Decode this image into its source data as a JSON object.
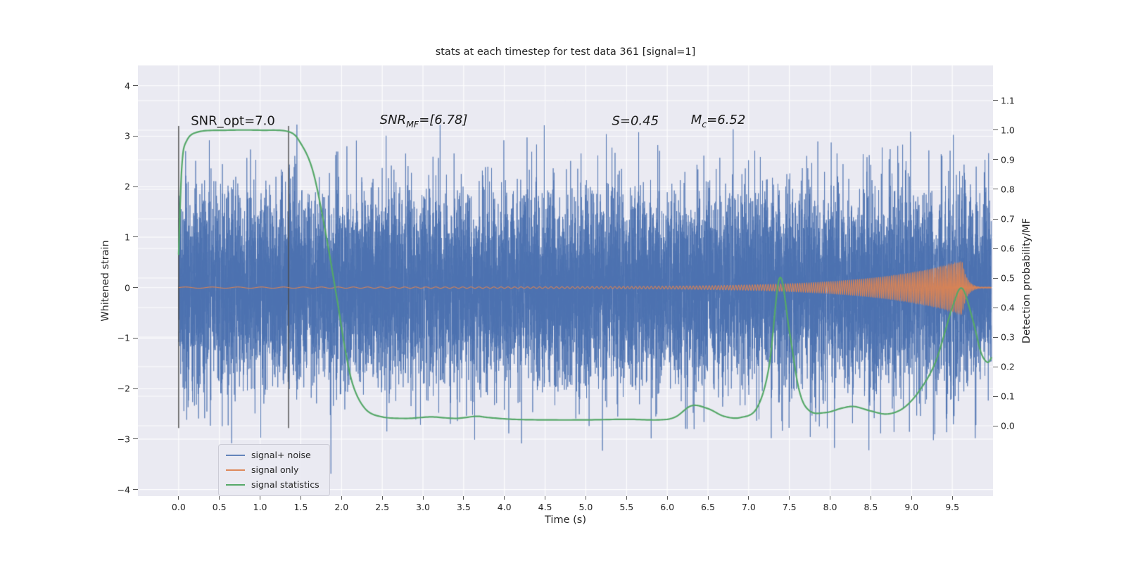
{
  "chart_data": {
    "type": "line",
    "title": "stats at each timestep for test data 361 [signal=1]",
    "background": "#eaeaf2",
    "grid_color": "#ffffff",
    "axes": {
      "x": {
        "label": "Time (s)",
        "lim": [
          -0.5,
          10.0
        ],
        "ticks": [
          0,
          0.5,
          1,
          1.5,
          2,
          2.5,
          3,
          3.5,
          4,
          4.5,
          5,
          5.5,
          6,
          6.5,
          7,
          7.5,
          8,
          8.5,
          9,
          9.5
        ],
        "tick_labels": [
          "0.0",
          "0.5",
          "1.0",
          "1.5",
          "2.0",
          "2.5",
          "3.0",
          "3.5",
          "4.0",
          "4.5",
          "5.0",
          "5.5",
          "6.0",
          "6.5",
          "7.0",
          "7.5",
          "8.0",
          "8.5",
          "9.0",
          "9.5"
        ]
      },
      "left": {
        "label": "Whitened strain",
        "lim": [
          -4.13,
          4.4
        ],
        "ticks": [
          4,
          3,
          2,
          1,
          0,
          -1,
          -2,
          -3,
          -4
        ],
        "tick_labels": [
          "4",
          "3",
          "2",
          "1",
          "0",
          "−1",
          "−2",
          "−3",
          "−4"
        ]
      },
      "right": {
        "label": "Detection probability/MF",
        "lim": [
          -0.238,
          1.219
        ],
        "ticks": [
          1.1,
          1.0,
          0.9,
          0.8,
          0.7,
          0.6,
          0.5,
          0.4,
          0.3,
          0.2,
          0.1,
          0.0
        ],
        "tick_labels": [
          "1.1",
          "1.0",
          "0.9",
          "0.8",
          "0.7",
          "0.6",
          "0.5",
          "0.4",
          "0.3",
          "0.2",
          "0.1",
          "0.0"
        ]
      }
    },
    "vlines": {
      "x": [
        0.0,
        1.35
      ],
      "strain_range": [
        -2.78,
        3.2
      ],
      "color": "#4a4a4a"
    },
    "annotations": [
      {
        "id": "snr-opt",
        "style": "plain",
        "prefix": "SNR_opt=7.0",
        "sub": "",
        "suffix": "",
        "x": 0.15,
        "y": 3.3
      },
      {
        "id": "snr-mf",
        "style": "math",
        "prefix": "SNR",
        "sub": "MF",
        "suffix": "=[6.78]",
        "x": 2.47,
        "y": 3.3
      },
      {
        "id": "s-value",
        "style": "math",
        "prefix": "S",
        "sub": "",
        "suffix": "=0.45",
        "x": 5.32,
        "y": 3.3
      },
      {
        "id": "mc-value",
        "style": "math",
        "prefix": "M",
        "sub": "c",
        "suffix": "=6.52",
        "x": 6.29,
        "y": 3.3
      }
    ],
    "series": [
      {
        "name": "signal+ noise",
        "kind": "noise",
        "axis": "left",
        "color": "#4c72b0",
        "alpha": 0.75,
        "seed": 361,
        "std": 0.95,
        "n": 12000,
        "t_range": [
          0.0,
          9.98
        ]
      },
      {
        "name": "signal only",
        "kind": "chirp",
        "axis": "left",
        "color": "#dd8452",
        "alpha": 0.95,
        "n": 24000,
        "t_range": [
          0.0,
          9.98
        ],
        "envelope": {
          "base": 0.012,
          "scale": 0.5,
          "t_peak": 9.62,
          "rise_tau": 1.05,
          "decay_tau": 0.06
        },
        "frequency": {
          "f0": 3.0,
          "k": 0.55,
          "pow": 2.0
        }
      },
      {
        "name": "signal statistics",
        "kind": "curve",
        "axis": "right",
        "color": "#55a868",
        "line_width": 2.2,
        "points": [
          [
            0.0,
            0.58
          ],
          [
            0.04,
            0.88
          ],
          [
            0.1,
            0.965
          ],
          [
            0.25,
            0.995
          ],
          [
            0.6,
            1.0
          ],
          [
            1.0,
            1.0
          ],
          [
            1.35,
            0.995
          ],
          [
            1.5,
            0.955
          ],
          [
            1.65,
            0.86
          ],
          [
            1.8,
            0.66
          ],
          [
            1.95,
            0.42
          ],
          [
            2.05,
            0.25
          ],
          [
            2.15,
            0.13
          ],
          [
            2.3,
            0.055
          ],
          [
            2.5,
            0.03
          ],
          [
            2.8,
            0.025
          ],
          [
            3.1,
            0.03
          ],
          [
            3.4,
            0.025
          ],
          [
            3.65,
            0.032
          ],
          [
            3.8,
            0.028
          ],
          [
            4.1,
            0.022
          ],
          [
            4.5,
            0.02
          ],
          [
            5.0,
            0.02
          ],
          [
            5.5,
            0.022
          ],
          [
            5.9,
            0.02
          ],
          [
            6.1,
            0.03
          ],
          [
            6.3,
            0.068
          ],
          [
            6.5,
            0.058
          ],
          [
            6.7,
            0.032
          ],
          [
            6.9,
            0.028
          ],
          [
            7.1,
            0.06
          ],
          [
            7.25,
            0.2
          ],
          [
            7.38,
            0.5
          ],
          [
            7.5,
            0.32
          ],
          [
            7.62,
            0.12
          ],
          [
            7.75,
            0.05
          ],
          [
            7.95,
            0.045
          ],
          [
            8.15,
            0.06
          ],
          [
            8.3,
            0.065
          ],
          [
            8.5,
            0.05
          ],
          [
            8.7,
            0.04
          ],
          [
            8.9,
            0.06
          ],
          [
            9.1,
            0.12
          ],
          [
            9.3,
            0.22
          ],
          [
            9.5,
            0.4
          ],
          [
            9.62,
            0.465
          ],
          [
            9.75,
            0.36
          ],
          [
            9.85,
            0.25
          ],
          [
            9.93,
            0.215
          ],
          [
            9.98,
            0.23
          ]
        ]
      }
    ]
  }
}
